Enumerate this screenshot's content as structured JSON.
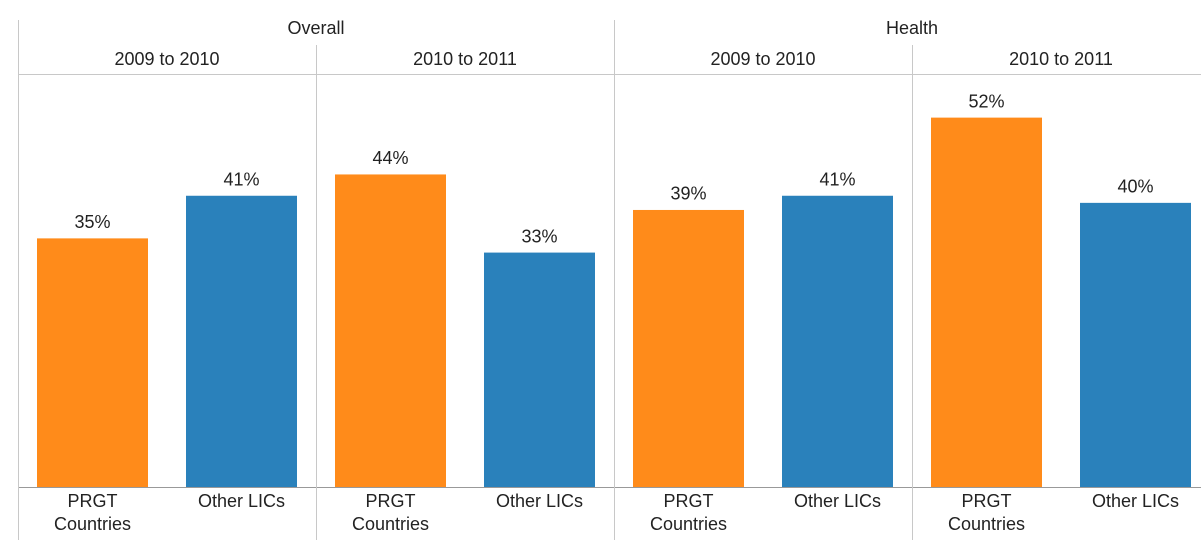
{
  "chart_data": {
    "type": "bar",
    "categories": [
      "PRGT Countries",
      "Other LICs"
    ],
    "colors": [
      "#ff8b1a",
      "#2a81bb"
    ],
    "ylim": [
      0,
      58
    ],
    "groups": [
      {
        "name": "Overall",
        "panels": [
          {
            "period": "2009 to 2010",
            "values": [
              35,
              41
            ],
            "value_labels": [
              "35%",
              "41%"
            ]
          },
          {
            "period": "2010 to 2011",
            "values": [
              44,
              33
            ],
            "value_labels": [
              "44%",
              "33%"
            ]
          }
        ]
      },
      {
        "name": "Health",
        "panels": [
          {
            "period": "2009 to 2010",
            "values": [
              39,
              41
            ],
            "value_labels": [
              "39%",
              "41%"
            ]
          },
          {
            "period": "2010 to 2011",
            "values": [
              52,
              40
            ],
            "value_labels": [
              "52%",
              "40%"
            ]
          }
        ]
      }
    ]
  }
}
